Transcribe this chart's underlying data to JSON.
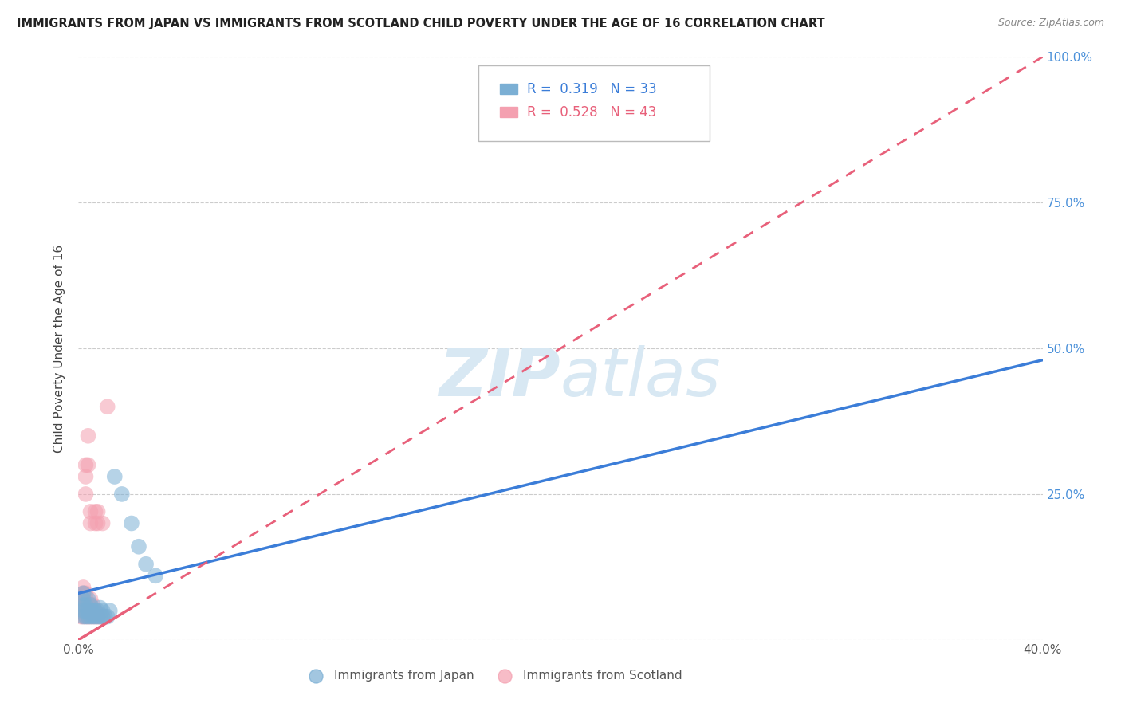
{
  "title": "IMMIGRANTS FROM JAPAN VS IMMIGRANTS FROM SCOTLAND CHILD POVERTY UNDER THE AGE OF 16 CORRELATION CHART",
  "source": "Source: ZipAtlas.com",
  "ylabel": "Child Poverty Under the Age of 16",
  "xlim": [
    0.0,
    0.4
  ],
  "ylim": [
    0.0,
    1.0
  ],
  "xticks": [
    0.0,
    0.1,
    0.2,
    0.3,
    0.4
  ],
  "xticklabels": [
    "0.0%",
    "",
    "",
    "",
    "40.0%"
  ],
  "yticks": [
    0.0,
    0.25,
    0.5,
    0.75,
    1.0
  ],
  "yticklabels_right": [
    "",
    "25.0%",
    "50.0%",
    "75.0%",
    "100.0%"
  ],
  "legend1_label": "Immigrants from Japan",
  "legend2_label": "Immigrants from Scotland",
  "r1": 0.319,
  "n1": 33,
  "r2": 0.528,
  "n2": 43,
  "color_japan": "#7BAFD4",
  "color_scotland": "#F4A0B0",
  "color_japan_line": "#3B7DD8",
  "color_scotland_line": "#E8607A",
  "color_tick_right": "#4A90D9",
  "japan_x": [
    0.002,
    0.002,
    0.002,
    0.002,
    0.002,
    0.003,
    0.003,
    0.003,
    0.004,
    0.004,
    0.004,
    0.005,
    0.005,
    0.005,
    0.006,
    0.006,
    0.007,
    0.007,
    0.008,
    0.008,
    0.009,
    0.009,
    0.01,
    0.01,
    0.011,
    0.012,
    0.013,
    0.015,
    0.018,
    0.022,
    0.025,
    0.028,
    0.032
  ],
  "japan_y": [
    0.04,
    0.05,
    0.06,
    0.07,
    0.08,
    0.04,
    0.05,
    0.06,
    0.04,
    0.05,
    0.07,
    0.04,
    0.05,
    0.06,
    0.04,
    0.05,
    0.04,
    0.05,
    0.04,
    0.05,
    0.04,
    0.055,
    0.04,
    0.05,
    0.04,
    0.04,
    0.05,
    0.28,
    0.25,
    0.2,
    0.16,
    0.13,
    0.11
  ],
  "scotland_x": [
    0.001,
    0.001,
    0.001,
    0.001,
    0.002,
    0.002,
    0.002,
    0.002,
    0.002,
    0.002,
    0.003,
    0.003,
    0.003,
    0.003,
    0.003,
    0.003,
    0.003,
    0.003,
    0.004,
    0.004,
    0.004,
    0.004,
    0.004,
    0.005,
    0.005,
    0.005,
    0.005,
    0.005,
    0.005,
    0.006,
    0.006,
    0.006,
    0.007,
    0.007,
    0.007,
    0.007,
    0.008,
    0.008,
    0.008,
    0.009,
    0.01,
    0.01,
    0.012
  ],
  "scotland_y": [
    0.04,
    0.05,
    0.06,
    0.07,
    0.04,
    0.05,
    0.06,
    0.07,
    0.08,
    0.09,
    0.04,
    0.05,
    0.06,
    0.07,
    0.08,
    0.25,
    0.28,
    0.3,
    0.04,
    0.05,
    0.06,
    0.3,
    0.35,
    0.04,
    0.05,
    0.06,
    0.07,
    0.2,
    0.22,
    0.04,
    0.05,
    0.06,
    0.04,
    0.05,
    0.2,
    0.22,
    0.04,
    0.2,
    0.22,
    0.04,
    0.04,
    0.2,
    0.4
  ],
  "japan_line_x": [
    0.0,
    0.4
  ],
  "japan_line_y": [
    0.08,
    0.48
  ],
  "scotland_line_x": [
    0.0,
    0.4
  ],
  "scotland_line_y": [
    0.0,
    1.0
  ]
}
